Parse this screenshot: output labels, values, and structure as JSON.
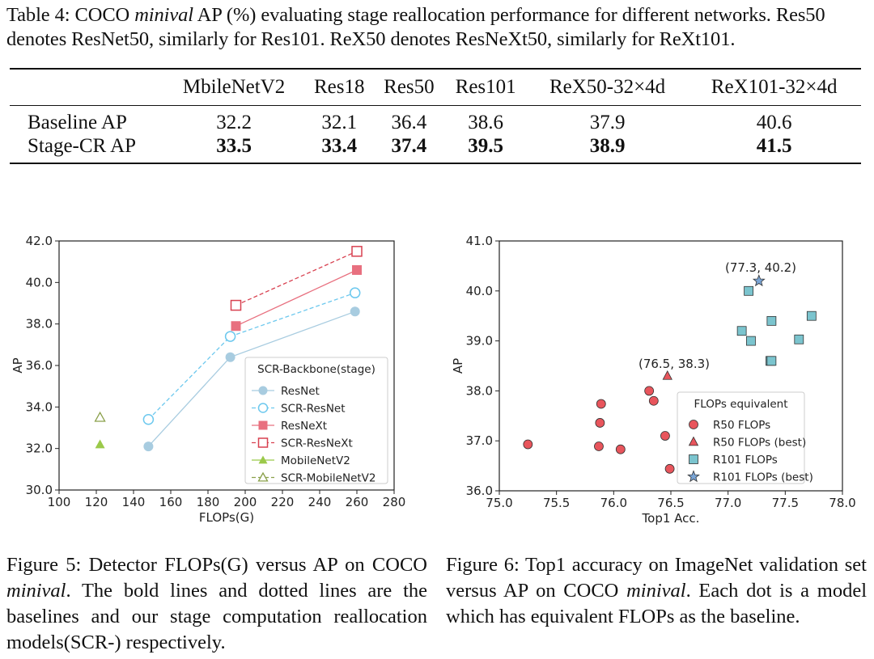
{
  "table": {
    "caption_label": "Table 4:",
    "caption_pre": "COCO",
    "caption_italic": "minival",
    "caption_post": "AP (%) evaluating stage reallocation performance for different networks. Res50 denotes ResNet50, similarly for Res101. ReX50 denotes ResNeXt50, similarly for ReXt101.",
    "headers": [
      "",
      "MbileNetV2",
      "Res18",
      "Res50",
      "Res101",
      "ReX50-32×4d",
      "ReX101-32×4d"
    ],
    "rows": [
      {
        "label": "Baseline AP",
        "values": [
          "32.2",
          "32.1",
          "36.4",
          "38.6",
          "37.9",
          "40.6"
        ]
      },
      {
        "label": "Stage-CR AP",
        "values": [
          "33.5",
          "33.4",
          "37.4",
          "39.5",
          "38.9",
          "41.5"
        ]
      }
    ]
  },
  "chart_data": [
    {
      "type": "line",
      "xlabel": "FLOPs(G)",
      "ylabel": "AP",
      "xlim": [
        100,
        280
      ],
      "ylim": [
        30.0,
        42.0
      ],
      "xticks": [
        "100",
        "120",
        "140",
        "160",
        "180",
        "200",
        "220",
        "240",
        "260",
        "280"
      ],
      "yticks": [
        "30.0",
        "32.0",
        "34.0",
        "36.0",
        "38.0",
        "40.0",
        "42.0"
      ],
      "legend_title": "SCR-Backbone(stage)",
      "legend_position": "lower-right",
      "series": [
        {
          "name": "ResNet",
          "color": "#a8cce0",
          "style": "solid",
          "marker": "filled-circle",
          "x": [
            148,
            192,
            259
          ],
          "y": [
            32.1,
            36.4,
            38.6
          ]
        },
        {
          "name": "SCR-ResNet",
          "color": "#6cc8ee",
          "style": "dashed",
          "marker": "open-circle",
          "x": [
            148,
            192,
            259
          ],
          "y": [
            33.4,
            37.4,
            39.5
          ]
        },
        {
          "name": "ResNeXt",
          "color": "#e8707f",
          "style": "solid",
          "marker": "filled-square",
          "x": [
            195,
            260
          ],
          "y": [
            37.9,
            40.6
          ]
        },
        {
          "name": "SCR-ResNeXt",
          "color": "#d84150",
          "style": "dashed",
          "marker": "open-square",
          "x": [
            195,
            260
          ],
          "y": [
            38.9,
            41.5
          ]
        },
        {
          "name": "MobileNetV2",
          "color": "#9bc94a",
          "style": "solid",
          "marker": "filled-triangle",
          "x": [
            122
          ],
          "y": [
            32.2
          ]
        },
        {
          "name": "SCR-MobileNetV2",
          "color": "#8aa04a",
          "style": "dashed",
          "marker": "open-triangle",
          "x": [
            122
          ],
          "y": [
            33.5
          ]
        }
      ]
    },
    {
      "type": "scatter",
      "xlabel": "Top1 Acc.",
      "ylabel": "AP",
      "xlim": [
        75.0,
        78.0
      ],
      "ylim": [
        36.0,
        41.0
      ],
      "xticks": [
        "75.0",
        "75.5",
        "76.0",
        "76.5",
        "77.0",
        "77.5",
        "78.0"
      ],
      "yticks": [
        "36.0",
        "37.0",
        "38.0",
        "39.0",
        "40.0",
        "41.0"
      ],
      "legend_title": "FLOPs equivalent",
      "legend_position": "lower-right",
      "annotations": [
        "(76.5, 38.3)",
        "(77.3, 40.2)"
      ],
      "series": [
        {
          "name": "R50 FLOPs",
          "color": "#e8555c",
          "marker": "circle",
          "x": [
            75.25,
            75.87,
            75.88,
            75.89,
            76.06,
            76.31,
            76.35,
            76.45,
            76.49
          ],
          "y": [
            36.93,
            36.89,
            37.36,
            37.74,
            36.83,
            38.0,
            37.8,
            37.1,
            36.44
          ]
        },
        {
          "name": "R50 FLOPs (best)",
          "color": "#e8555c",
          "marker": "triangle",
          "x": [
            76.47
          ],
          "y": [
            38.3
          ]
        },
        {
          "name": "R101 FLOPs",
          "color": "#7bc4ce",
          "marker": "square",
          "x": [
            77.12,
            77.18,
            77.2,
            77.37,
            77.38,
            77.38,
            77.62,
            77.73
          ],
          "y": [
            39.2,
            40.0,
            39.0,
            38.6,
            39.4,
            38.6,
            39.03,
            39.5
          ]
        },
        {
          "name": "R101 FLOPs (best)",
          "color": "#7aa5d6",
          "marker": "star",
          "x": [
            77.27
          ],
          "y": [
            40.2
          ]
        }
      ]
    }
  ],
  "figure5": {
    "label": "Figure 5:",
    "text_pre": "Detector FLOPs(G) versus AP on COCO",
    "italic": "minival",
    "text_post": ". The bold lines and dotted lines are the baselines and our stage computation reallocation models(SCR-) respectively."
  },
  "figure6": {
    "label": "Figure 6:",
    "text_pre": "Top1 accuracy on ImageNet validation set versus AP on COCO",
    "italic": "minival",
    "text_post": ". Each dot is a model which has equivalent FLOPs as the baseline."
  }
}
